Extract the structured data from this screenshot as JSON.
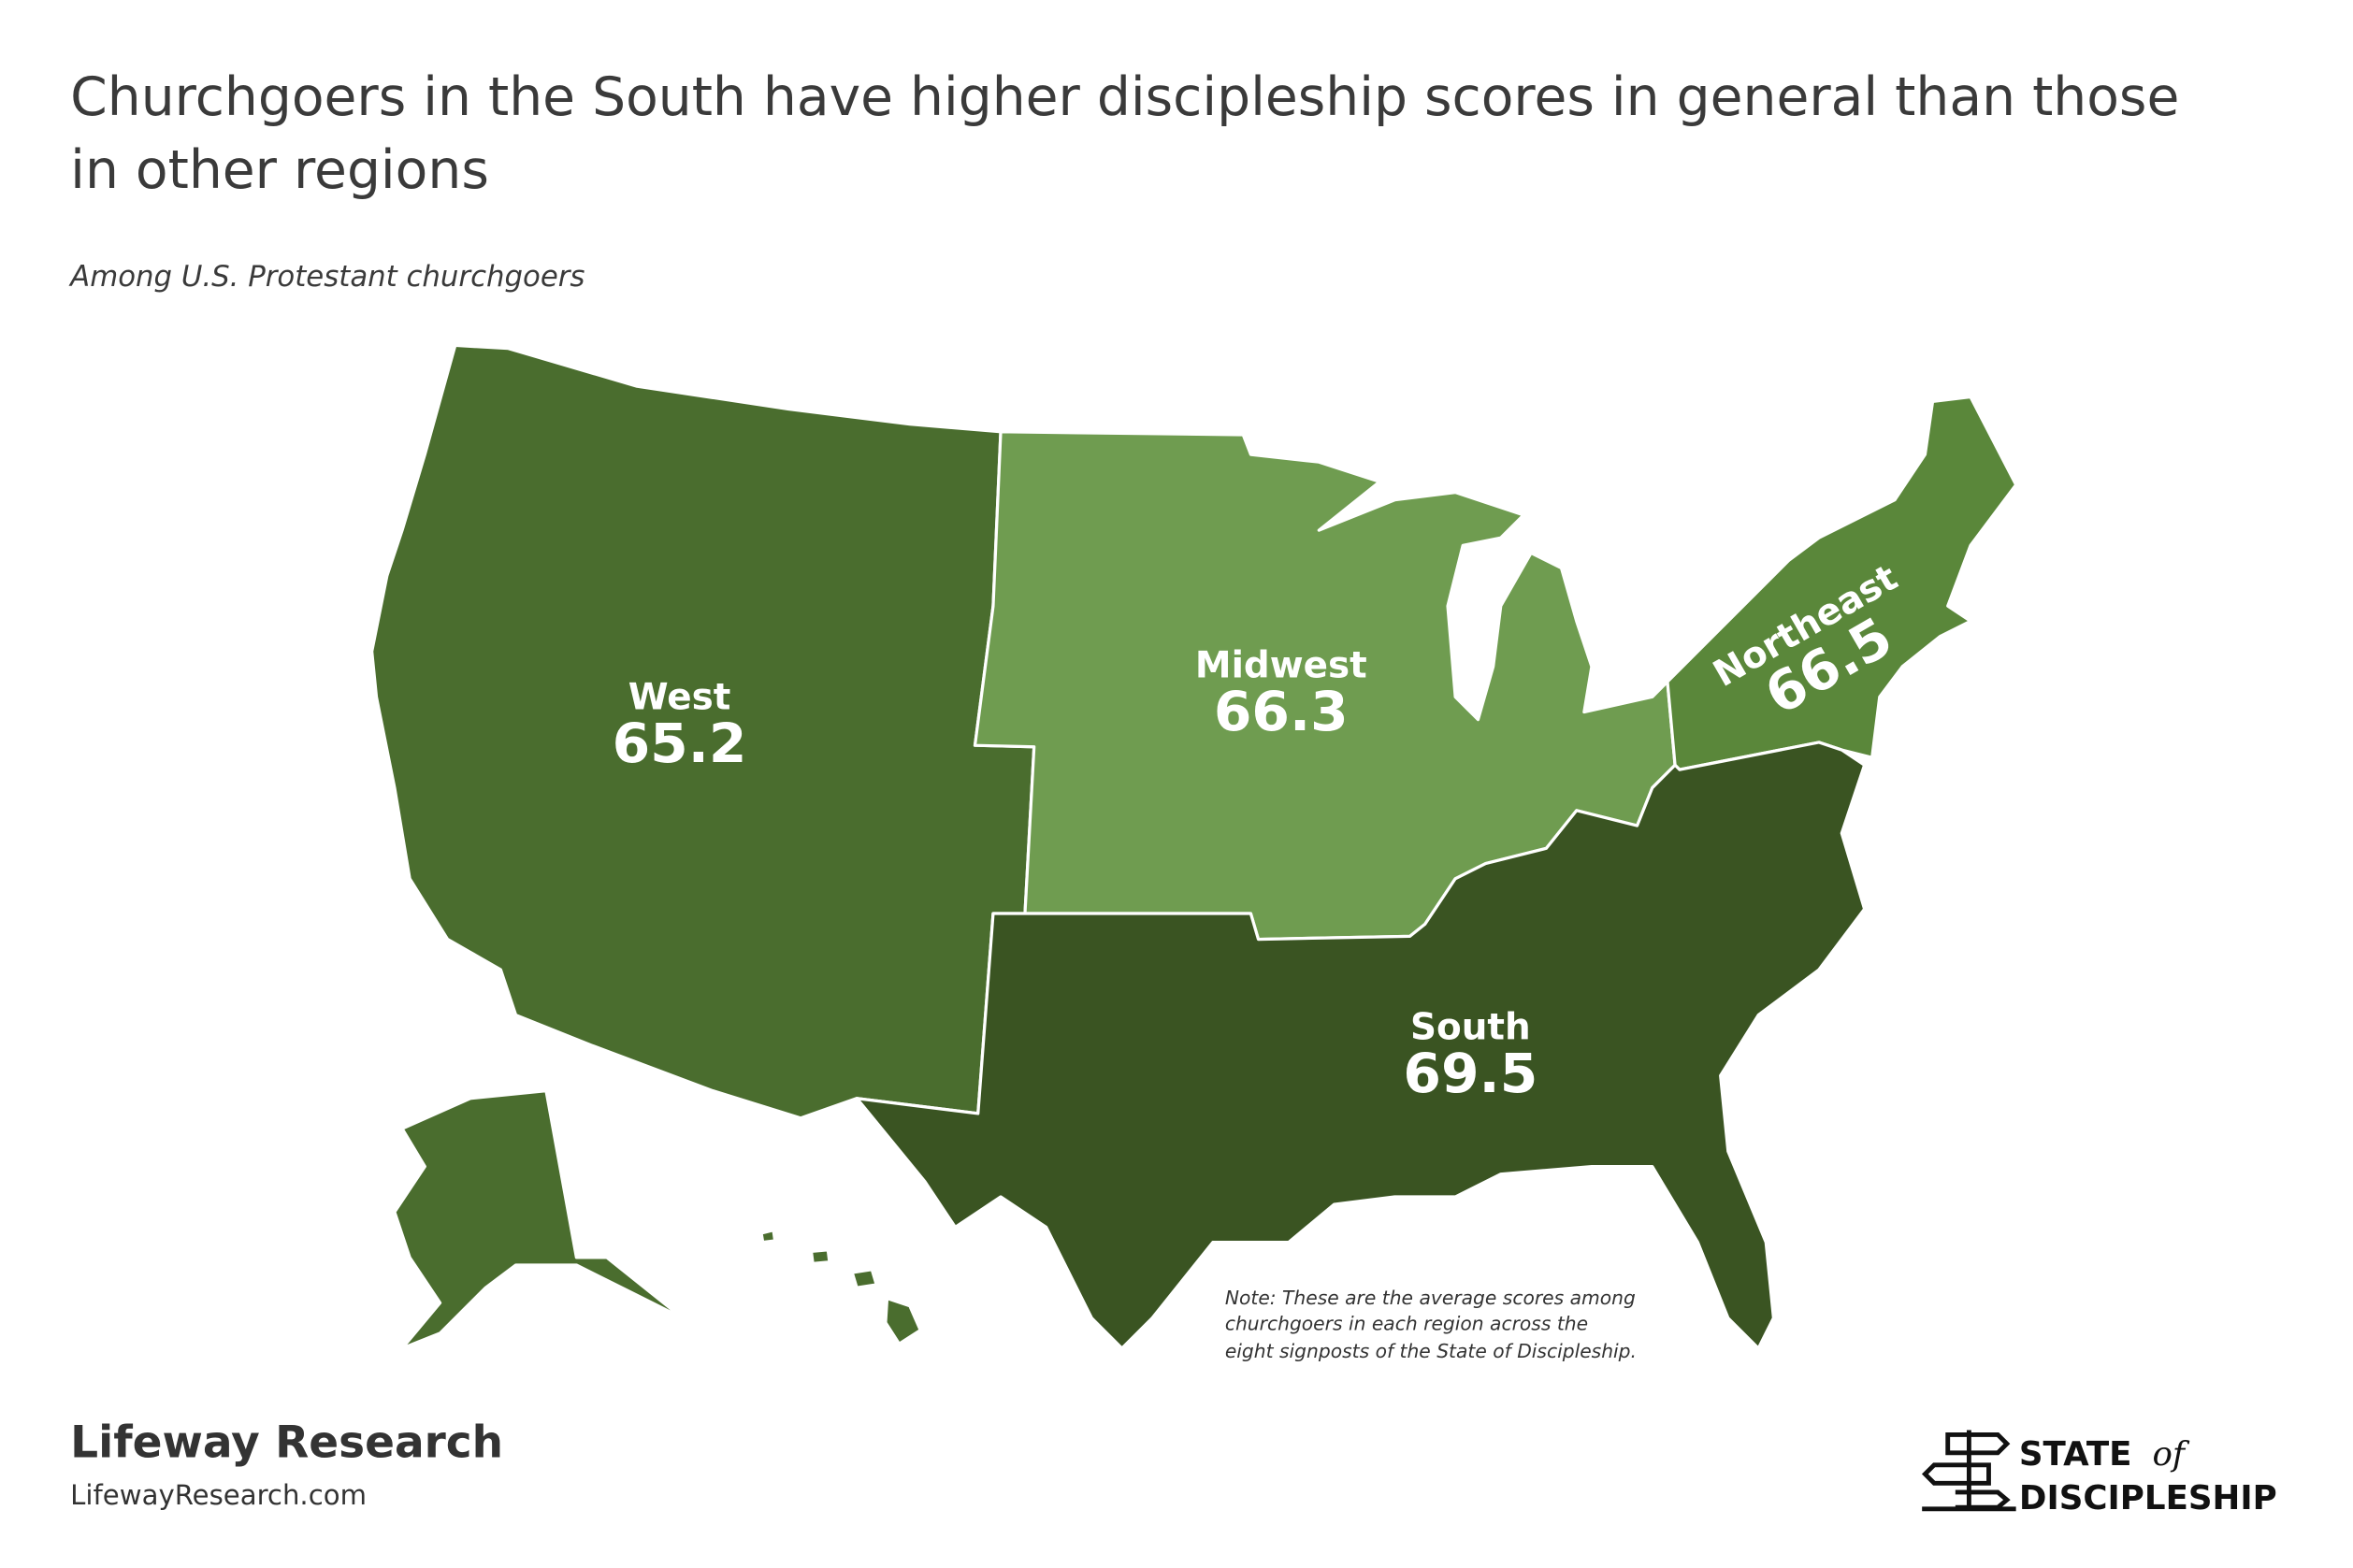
{
  "header": {
    "title_lines": [
      "Churchgoers in the South have higher discipleship scores in general than those",
      "in other regions"
    ],
    "subtitle": "Among U.S. Protestant churchgoers"
  },
  "chart_data": {
    "type": "choropleth",
    "regions": [
      {
        "name": "West",
        "value": 65.2,
        "color": "#4a6d2e"
      },
      {
        "name": "Midwest",
        "value": 66.3,
        "color": "#6f9c50"
      },
      {
        "name": "Northeast",
        "value": 66.5,
        "color": "#5a873a"
      },
      {
        "name": "South",
        "value": 69.5,
        "color": "#3a5422"
      }
    ]
  },
  "note": [
    "Note: These are the average scores among",
    "churchgoers in each region across the",
    "eight signposts of the State of Discipleship."
  ],
  "footer": {
    "brand": "Lifeway Research",
    "url": "LifewayResearch.com",
    "logo_state": "STATE",
    "logo_of": "of",
    "logo_discipleship": "DISCIPLESHIP"
  }
}
